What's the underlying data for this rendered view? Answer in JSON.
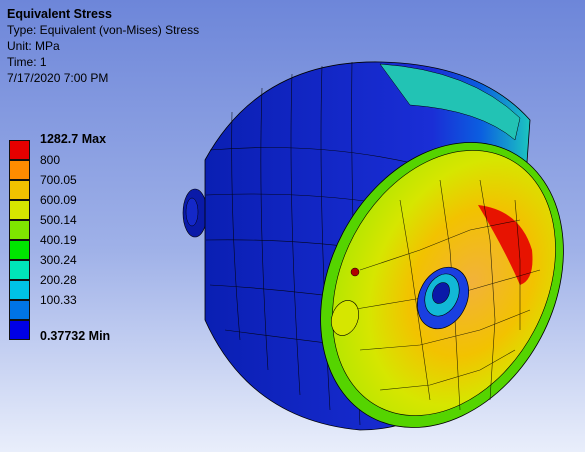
{
  "result": {
    "title": "Equivalent Stress",
    "type_line": "Type: Equivalent (von-Mises) Stress",
    "unit_line": "Unit: MPa",
    "time_line": "Time: 1",
    "date_line": "7/17/2020 7:00 PM"
  },
  "legend": {
    "max_label": "1282.7 Max",
    "min_label": "0.37732 Min",
    "levels": [
      "800",
      "700.05",
      "600.09",
      "500.14",
      "400.19",
      "300.24",
      "200.28",
      "100.33"
    ],
    "colors": [
      "#e60000",
      "#ff8c00",
      "#f2c200",
      "#d6e600",
      "#7ee600",
      "#00e600",
      "#00e6b8",
      "#00c3e6",
      "#0074e6",
      "#0000e6"
    ]
  },
  "model": {
    "icon": "stressed-cylindrical-part-3d-model"
  }
}
